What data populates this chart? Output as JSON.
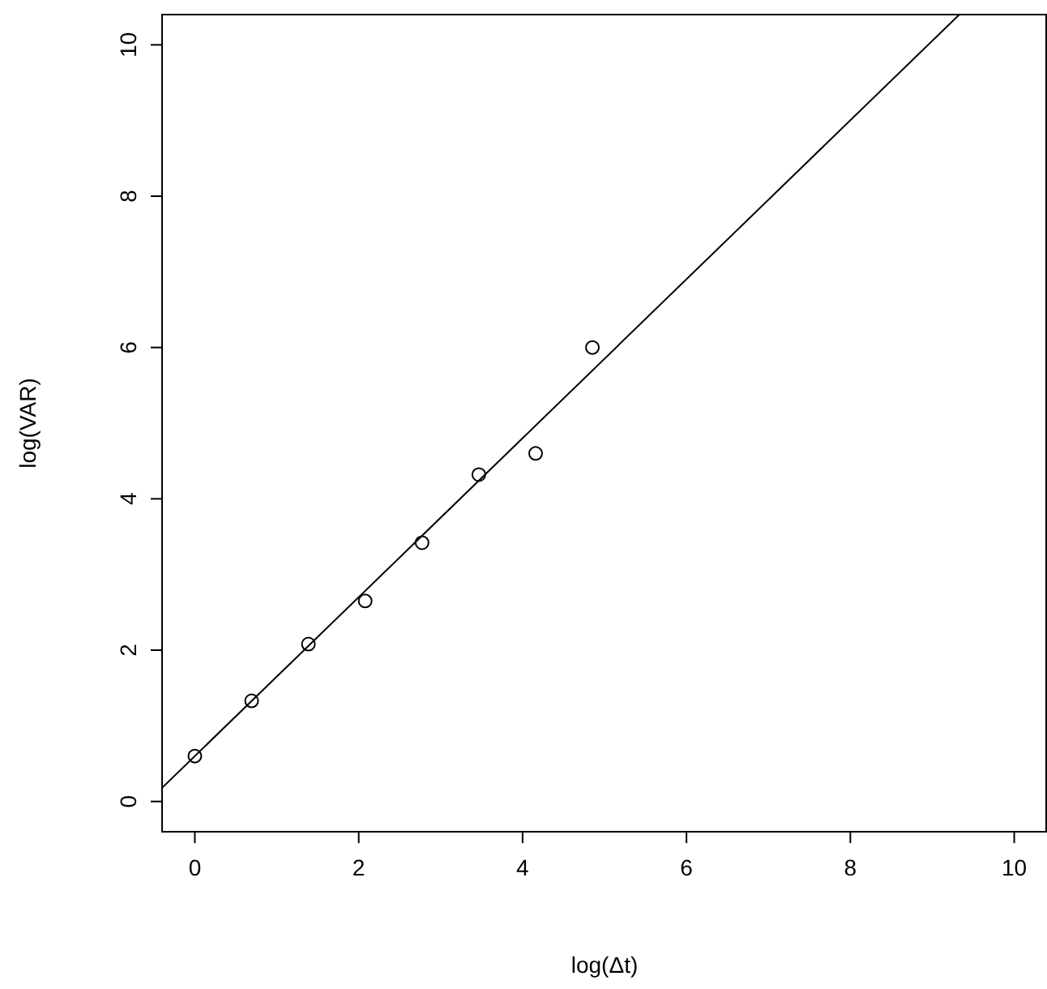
{
  "chart_data": {
    "type": "scatter",
    "xlabel": "log(Δt)",
    "ylabel": "log(VAR)",
    "xlim": [
      -0.4,
      10.4
    ],
    "ylim": [
      -0.4,
      10.4
    ],
    "xticks": [
      0,
      2,
      4,
      6,
      8,
      10
    ],
    "yticks": [
      0,
      2,
      4,
      6,
      8,
      10
    ],
    "grid": false,
    "marker": "circle",
    "series": [
      {
        "color": "#000000",
        "x": [
          0,
          0.693,
          1.386,
          2.079,
          2.773,
          3.466,
          4.159,
          4.852
        ],
        "values": [
          0.6,
          1.33,
          2.08,
          2.65,
          3.42,
          4.32,
          4.6,
          6.0
        ]
      },
      {
        "type": "line",
        "color": "#000000",
        "line_style": "solid",
        "marker": "none",
        "x": [
          -0.4,
          9.33
        ],
        "values": [
          0.18,
          10.4
        ]
      }
    ]
  }
}
